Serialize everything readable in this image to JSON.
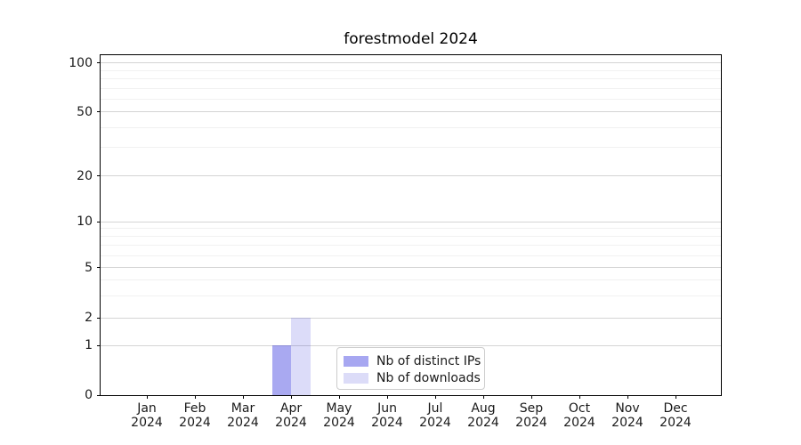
{
  "title": "forestmodel 2024",
  "legend": {
    "items": [
      {
        "label": "Nb of distinct IPs",
        "swatch_color": "#a7a7f1"
      },
      {
        "label": "Nb of downloads",
        "swatch_color": "#dcdcf8"
      }
    ]
  },
  "chart_data": {
    "type": "bar",
    "title": "forestmodel 2024",
    "categories": [
      "Jan 2024",
      "Feb 2024",
      "Mar 2024",
      "Apr 2024",
      "May 2024",
      "Jun 2024",
      "Jul 2024",
      "Aug 2024",
      "Sep 2024",
      "Oct 2024",
      "Nov 2024",
      "Dec 2024"
    ],
    "xtick_labels": [
      [
        "Jan",
        "2024"
      ],
      [
        "Feb",
        "2024"
      ],
      [
        "Mar",
        "2024"
      ],
      [
        "Apr",
        "2024"
      ],
      [
        "May",
        "2024"
      ],
      [
        "Jun",
        "2024"
      ],
      [
        "Jul",
        "2024"
      ],
      [
        "Aug",
        "2024"
      ],
      [
        "Sep",
        "2024"
      ],
      [
        "Oct",
        "2024"
      ],
      [
        "Nov",
        "2024"
      ],
      [
        "Dec",
        "2024"
      ]
    ],
    "series": [
      {
        "name": "Nb of distinct IPs",
        "values": [
          0,
          0,
          0,
          1,
          0,
          0,
          0,
          0,
          0,
          0,
          0,
          0
        ],
        "color": "#a7a7f1",
        "fill_rgba": "rgba(10,10,215,0.35)"
      },
      {
        "name": "Nb of downloads",
        "values": [
          0,
          0,
          0,
          2,
          0,
          0,
          0,
          0,
          0,
          0,
          0,
          0
        ],
        "color": "#dcdcf8",
        "fill_rgba": "rgba(10,10,215,0.14)"
      }
    ],
    "xlabel": "",
    "ylabel": "",
    "yscale": "symlog",
    "ylim": [
      0,
      140
    ],
    "yticks": [
      0,
      1,
      2,
      5,
      10,
      20,
      50,
      100
    ],
    "ytick_labels": [
      "0",
      "1",
      "2",
      "5",
      "10",
      "20",
      "50",
      "100"
    ],
    "y_minor_ticks": [
      3,
      4,
      6,
      7,
      8,
      9,
      30,
      40,
      60,
      70,
      80,
      90
    ],
    "grid": "horizontal, major and minor",
    "legend_position": "inside lower center-left"
  }
}
